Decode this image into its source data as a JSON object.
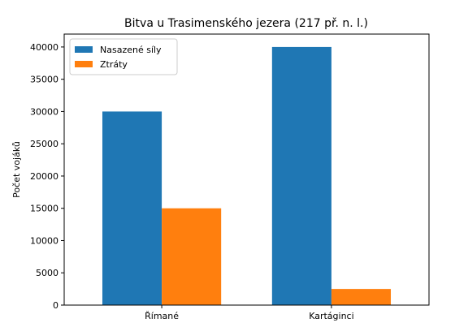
{
  "chart_data": {
    "type": "bar",
    "title": "Bitva u Trasimenského jezera (217 př. n. l.)",
    "xlabel": "",
    "ylabel": "Počet vojáků",
    "categories": [
      "Římané",
      "Kartáginci"
    ],
    "series": [
      {
        "name": "Nasazené síly",
        "color": "#1f77b4",
        "values": [
          30000,
          40000
        ]
      },
      {
        "name": "Ztráty",
        "color": "#ff7f0e",
        "values": [
          15000,
          2500
        ]
      }
    ],
    "ylim": [
      0,
      42000
    ],
    "yticks": [
      0,
      5000,
      10000,
      15000,
      20000,
      25000,
      30000,
      35000,
      40000
    ],
    "grid": false,
    "legend_position": "top-left"
  }
}
